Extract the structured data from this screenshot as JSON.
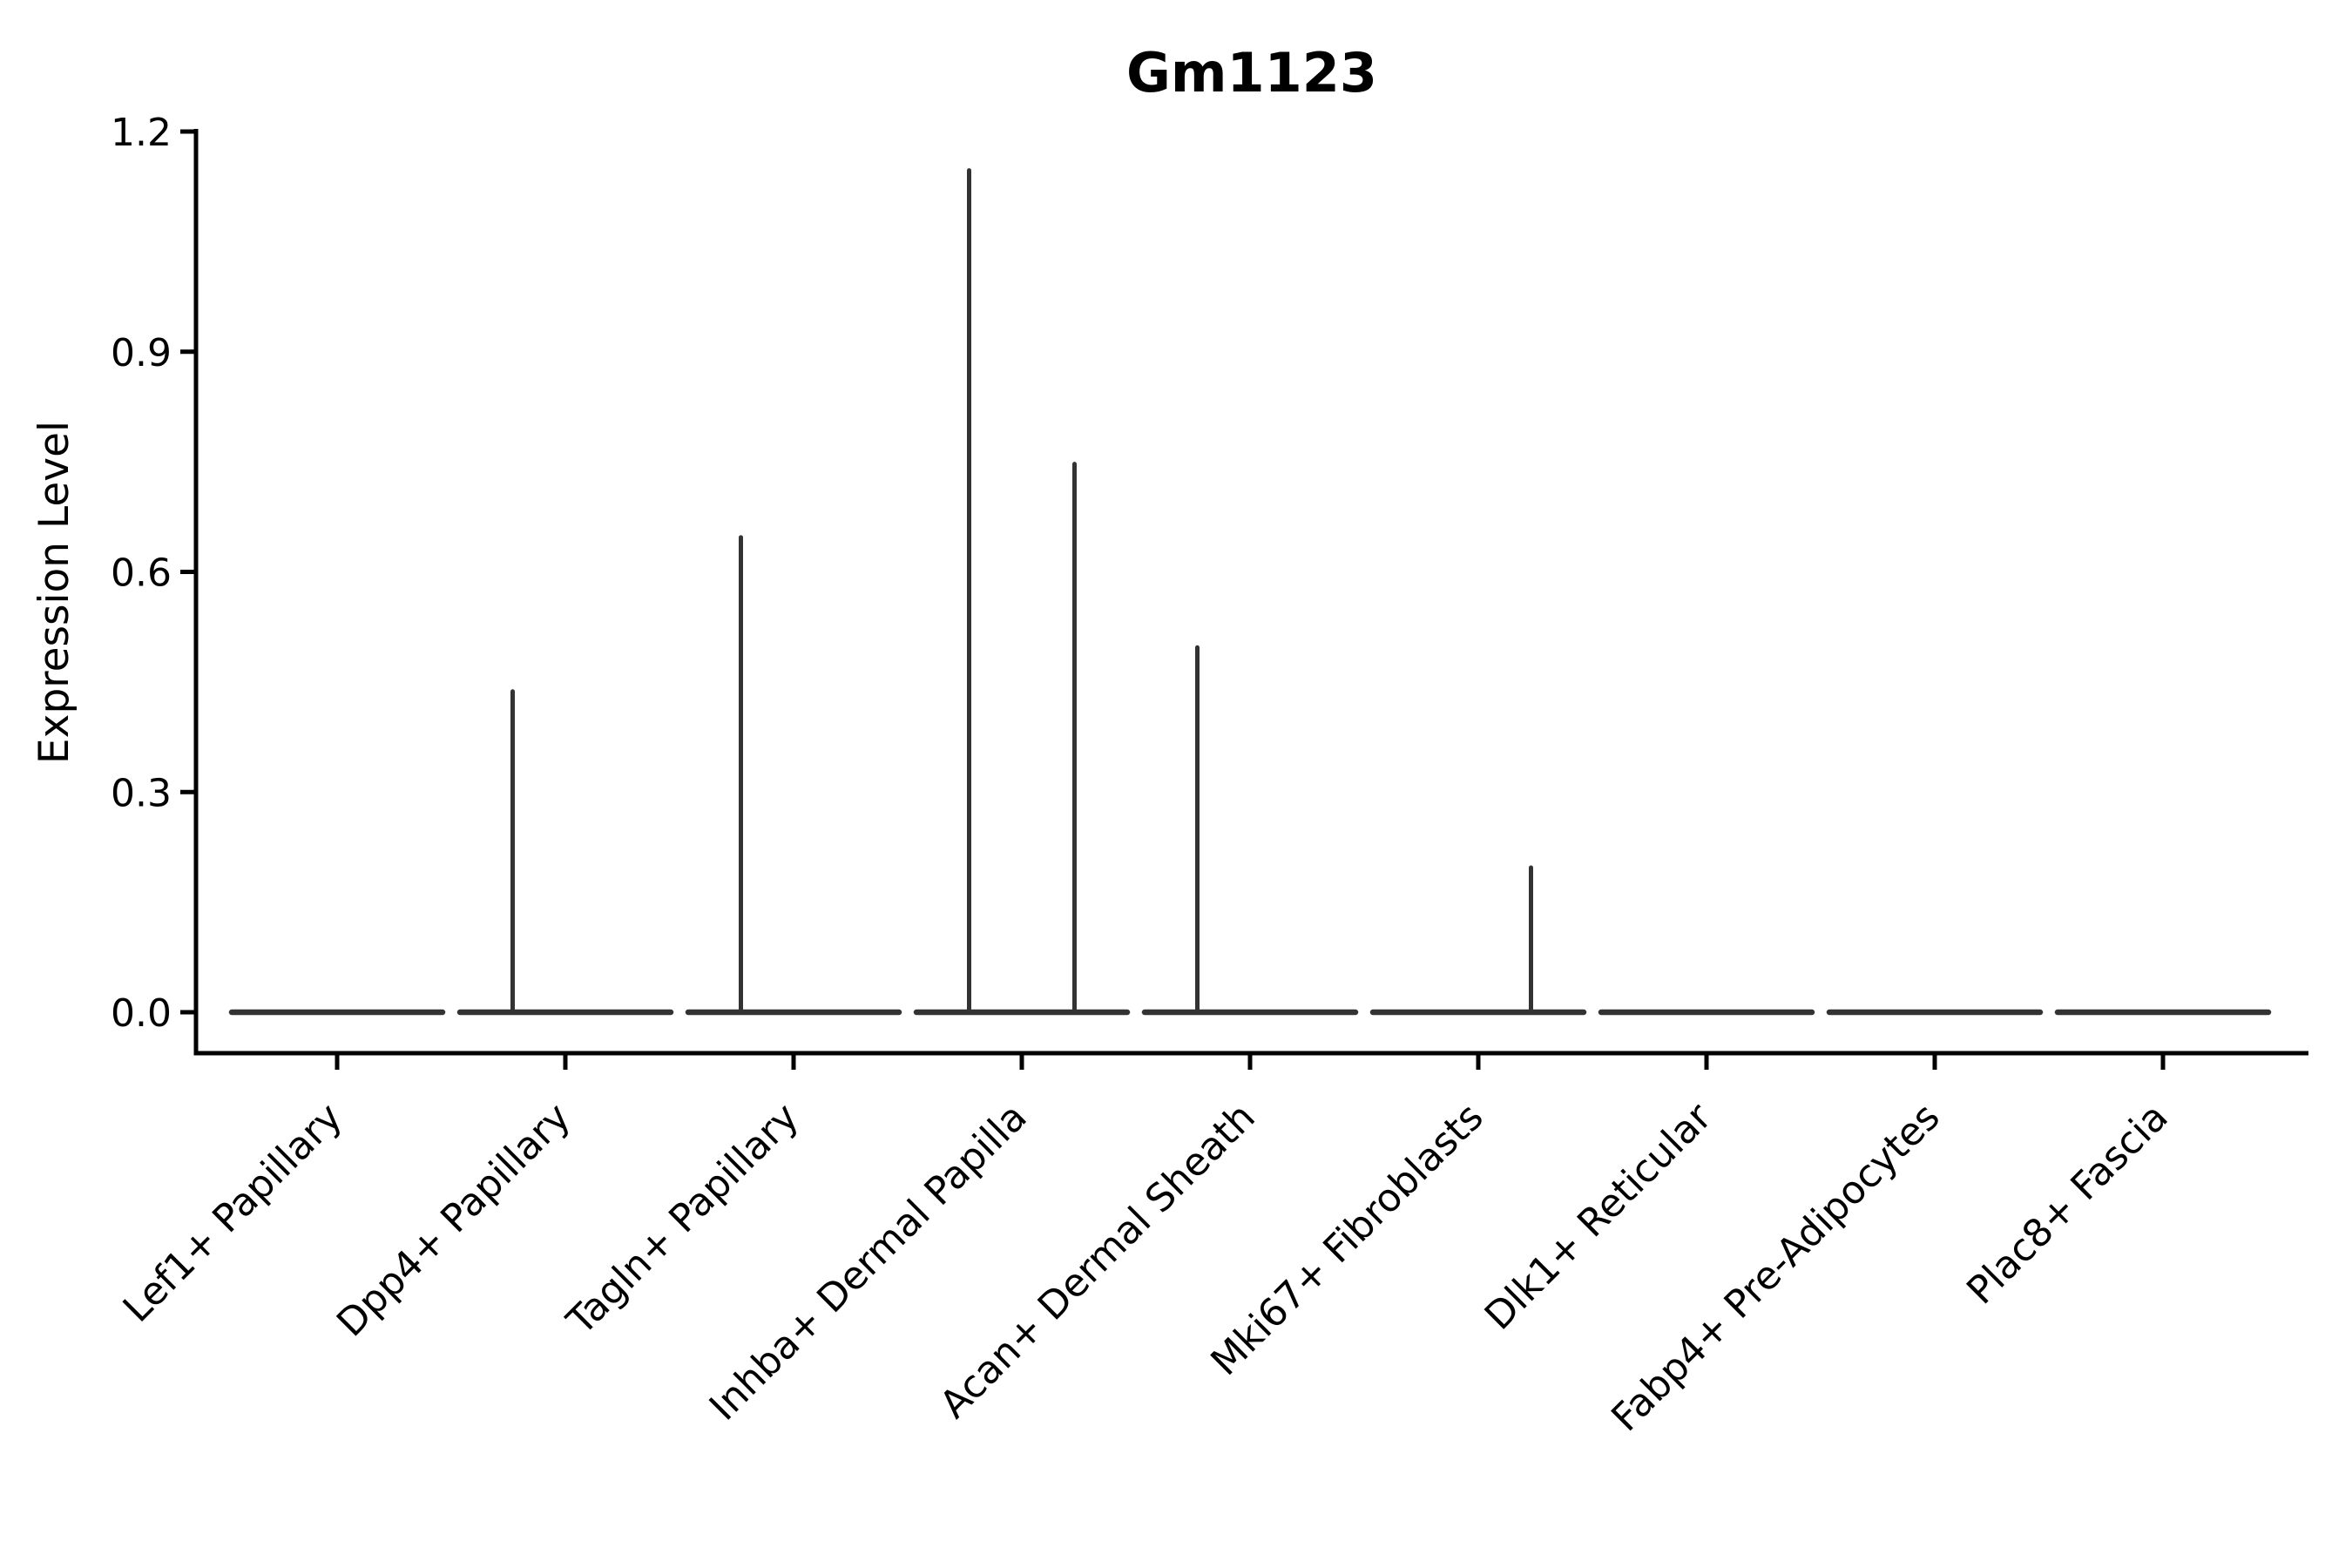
{
  "page": {
    "background": "#ffffff"
  },
  "chart_data": {
    "type": "violin",
    "title": "Gm1123",
    "xlabel": "",
    "ylabel": "Expression Level",
    "ylim": [
      0,
      1.2
    ],
    "yticks": [
      0,
      0.3,
      0.6,
      0.9,
      1.2
    ],
    "ytick_labels": [
      "0.0",
      "0.3",
      "0.6",
      "0.9",
      "1.2"
    ],
    "grid": false,
    "legend": null,
    "categories": [
      "Lef1+ Papillary",
      "Dpp4+ Papillary",
      "Tagln+ Papillary",
      "Inhba+ Dermal Papilla",
      "Acan+ Dermal Sheath",
      "Mki67+ Fibroblasts",
      "Dlk1+ Reticular",
      "Fabp4+ Pre-Adipocytes",
      "Plac8+ Fascia"
    ],
    "violins": [
      {
        "category": "Lef1+ Papillary",
        "body": "flat-at-zero",
        "peaks": []
      },
      {
        "category": "Dpp4+ Papillary",
        "body": "flat-at-zero",
        "peaks": [
          {
            "side": "left",
            "max": 0.44
          }
        ]
      },
      {
        "category": "Tagln+ Papillary",
        "body": "flat-at-zero",
        "peaks": [
          {
            "side": "left",
            "max": 0.65
          }
        ]
      },
      {
        "category": "Inhba+ Dermal Papilla",
        "body": "flat-at-zero",
        "peaks": [
          {
            "side": "left",
            "max": 1.15
          },
          {
            "side": "right",
            "max": 0.75
          }
        ]
      },
      {
        "category": "Acan+ Dermal Sheath",
        "body": "flat-at-zero",
        "peaks": [
          {
            "side": "left",
            "max": 0.5
          }
        ]
      },
      {
        "category": "Mki67+ Fibroblasts",
        "body": "flat-at-zero",
        "peaks": [
          {
            "side": "right",
            "max": 0.2
          }
        ]
      },
      {
        "category": "Dlk1+ Reticular",
        "body": "flat-at-zero",
        "peaks": []
      },
      {
        "category": "Fabp4+ Pre-Adipocytes",
        "body": "flat-at-zero",
        "peaks": []
      },
      {
        "category": "Plac8+ Fascia",
        "body": "flat-at-zero",
        "peaks": []
      }
    ],
    "colors": {
      "violin_line": "#333333",
      "axis": "#000000",
      "text": "#000000",
      "background": "#ffffff"
    }
  }
}
